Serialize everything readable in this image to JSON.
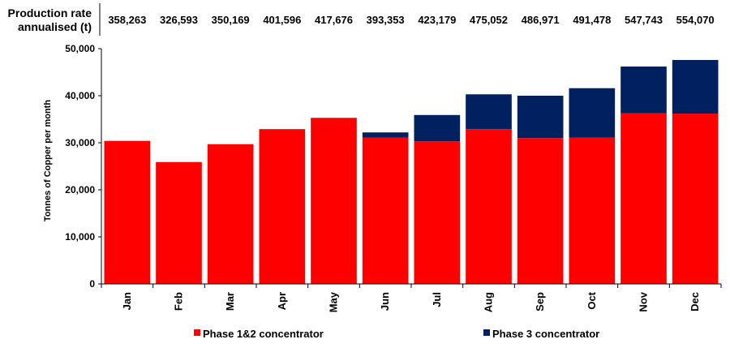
{
  "header": {
    "label_line1": "Production rate",
    "label_line2": "annualised (t)"
  },
  "production_rate": [
    "358,263",
    "326,593",
    "350,169",
    "401,596",
    "417,676",
    "393,353",
    "423,179",
    "475,052",
    "486,971",
    "491,478",
    "547,743",
    "554,070"
  ],
  "chart_data": {
    "type": "bar",
    "stacked": true,
    "title": "",
    "xlabel": "",
    "ylabel": "Tonnes of Copper per month",
    "ylim": [
      0,
      50000
    ],
    "yticks": [
      0,
      10000,
      20000,
      30000,
      40000,
      50000
    ],
    "ytick_labels": [
      "0",
      "10,000",
      "20,000",
      "30,000",
      "40,000",
      "50,000"
    ],
    "categories": [
      "Jan",
      "Feb",
      "Mar",
      "Apr",
      "May",
      "Jun",
      "Jul",
      "Aug",
      "Sep",
      "Oct",
      "Nov",
      "Dec"
    ],
    "series": [
      {
        "name": "Phase 1&2 concentrator",
        "color": "#ff0000",
        "values": [
          30400,
          25900,
          29700,
          32900,
          35300,
          31100,
          30300,
          32900,
          31000,
          31100,
          36300,
          36200
        ]
      },
      {
        "name": "Phase 3 concentrator",
        "color": "#002060",
        "values": [
          0,
          0,
          0,
          0,
          0,
          1100,
          5600,
          7400,
          9000,
          10500,
          9900,
          11400
        ]
      }
    ],
    "legend_position": "bottom",
    "grid": false
  }
}
